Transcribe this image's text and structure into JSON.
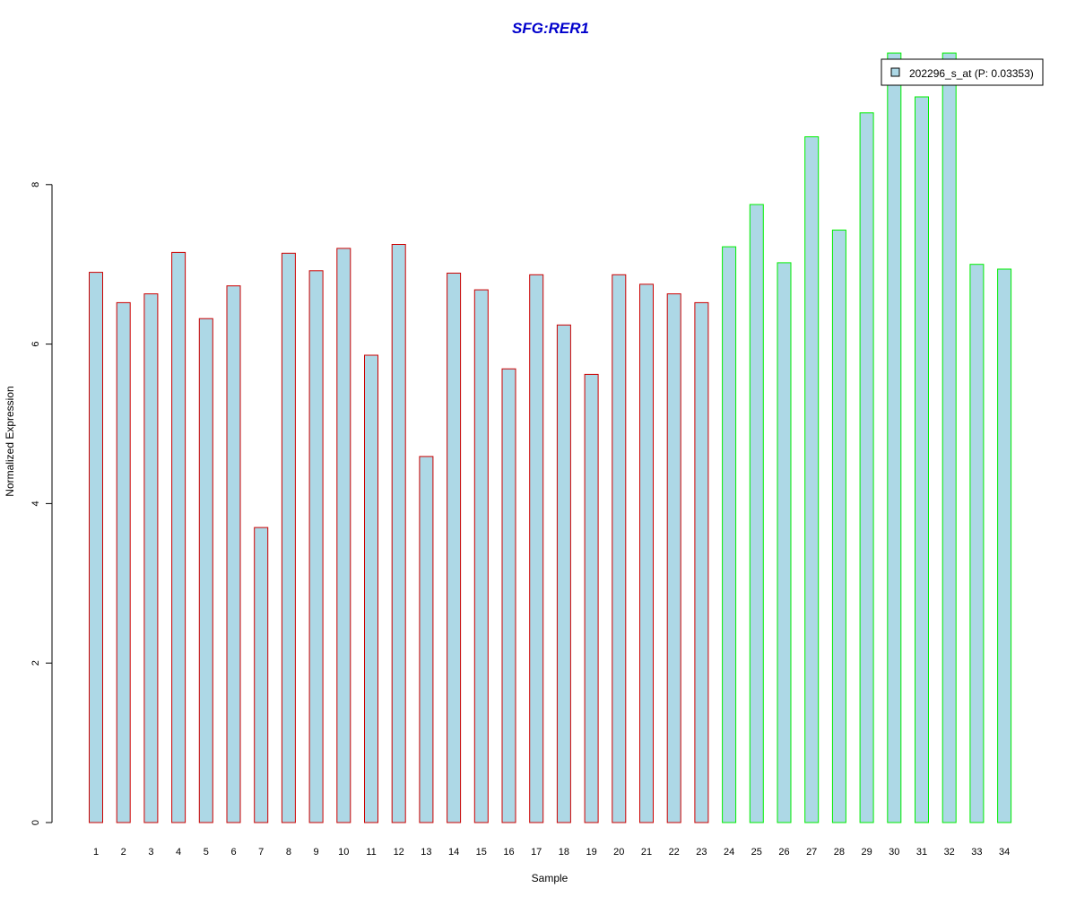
{
  "chart_data": {
    "type": "bar",
    "title": "SFG:RER1",
    "xlabel": "Sample",
    "ylabel": "Normalized Expression",
    "categories": [
      "1",
      "2",
      "3",
      "4",
      "5",
      "6",
      "7",
      "8",
      "9",
      "10",
      "11",
      "12",
      "13",
      "14",
      "15",
      "16",
      "17",
      "18",
      "19",
      "20",
      "21",
      "22",
      "23",
      "24",
      "25",
      "26",
      "27",
      "28",
      "29",
      "30",
      "31",
      "32",
      "33",
      "34"
    ],
    "series": [
      {
        "name": "202296_s_at (P: 0.03353)",
        "values": [
          6.9,
          6.52,
          6.63,
          7.15,
          6.32,
          6.73,
          3.7,
          7.14,
          6.92,
          7.2,
          5.86,
          7.25,
          4.59,
          6.89,
          6.68,
          5.69,
          6.87,
          6.24,
          5.62,
          6.87,
          6.75,
          6.63,
          6.52,
          7.22,
          7.75,
          7.02,
          8.6,
          7.43,
          8.9,
          9.65,
          9.1,
          9.65,
          7.0,
          6.94
        ]
      }
    ],
    "group_of_sample": [
      "a",
      "a",
      "a",
      "a",
      "a",
      "a",
      "a",
      "a",
      "a",
      "a",
      "a",
      "a",
      "a",
      "a",
      "a",
      "a",
      "a",
      "a",
      "a",
      "a",
      "a",
      "a",
      "a",
      "b",
      "b",
      "b",
      "b",
      "b",
      "b",
      "b",
      "b",
      "b",
      "b",
      "b"
    ],
    "yticks": [
      "0",
      "2",
      "4",
      "6",
      "8"
    ],
    "ylim": [
      0,
      9.8
    ],
    "grid": false,
    "legend_position": "top-right",
    "colors": {
      "bar_fill": "#add8e6",
      "group_a_border": "#cc0000",
      "group_b_border": "#00ee00",
      "title": "#0000cc",
      "axis": "#000000"
    }
  }
}
